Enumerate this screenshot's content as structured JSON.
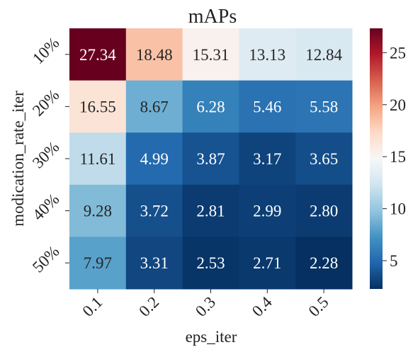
{
  "chart_data": {
    "type": "heatmap",
    "title": "mAPs",
    "xlabel": "eps_iter",
    "ylabel": "modication_rate_iter",
    "x_categories": [
      "0.1",
      "0.2",
      "0.3",
      "0.4",
      "0.5"
    ],
    "y_categories": [
      "10%",
      "20%",
      "30%",
      "40%",
      "50%"
    ],
    "values": [
      [
        27.34,
        18.48,
        15.31,
        13.13,
        12.84
      ],
      [
        16.55,
        8.67,
        6.28,
        5.46,
        5.58
      ],
      [
        11.61,
        4.99,
        3.87,
        3.17,
        3.65
      ],
      [
        9.28,
        3.72,
        2.81,
        2.99,
        2.8
      ],
      [
        7.97,
        3.31,
        2.53,
        2.71,
        2.28
      ]
    ],
    "cell_labels": [
      [
        "27.34",
        "18.48",
        "15.31",
        "13.13",
        "12.84"
      ],
      [
        "16.55",
        "8.67",
        "6.28",
        "5.46",
        "5.58"
      ],
      [
        "11.61",
        "4.99",
        "3.87",
        "3.17",
        "3.65"
      ],
      [
        "9.28",
        "3.72",
        "2.81",
        "2.99",
        "2.80"
      ],
      [
        "7.97",
        "3.31",
        "2.53",
        "2.71",
        "2.28"
      ]
    ],
    "colormap": "RdBu_r",
    "colorbar": {
      "range": [
        2.28,
        27.34
      ],
      "ticks": [
        5,
        10,
        15,
        20,
        25
      ],
      "tick_labels": [
        "5",
        "10",
        "15",
        "20",
        "25"
      ]
    }
  }
}
